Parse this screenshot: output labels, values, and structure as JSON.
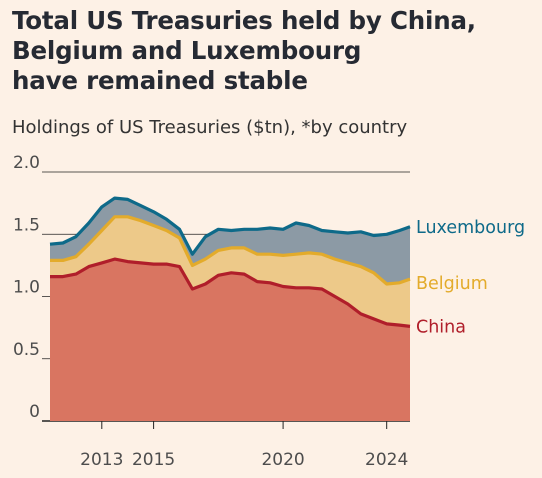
{
  "title_lines": [
    "Total US Treasuries held by China,",
    "Belgium and Luxembourg",
    "have remained stable"
  ],
  "subtitle": "Holdings of US Treasuries ($tn), *by country",
  "colors": {
    "background": "#fdf1e6",
    "china_fill": "#d97561",
    "china_line": "#b01e2a",
    "belgium_fill": "#edc989",
    "belgium_line": "#e3ab2b",
    "luxembourg_fill": "#8c9aa5",
    "luxembourg_line": "#0e6a89",
    "grid": "#222222"
  },
  "chart_data": {
    "type": "area",
    "stacked": true,
    "title": "Total US Treasuries held by China, Belgium and Luxembourg have remained stable",
    "subtitle": "Holdings of US Treasuries ($tn), *by country",
    "xlabel": "",
    "ylabel": "",
    "ylim": [
      0,
      2.0
    ],
    "y_ticks": [
      0,
      0.5,
      1.0,
      1.5,
      2.0
    ],
    "y_tick_labels": [
      "0",
      "0.5",
      "1.0",
      "1.5",
      "2.0"
    ],
    "x_ticks": [
      2013,
      2015,
      2020,
      2024
    ],
    "x_tick_labels": [
      "2013",
      "2015",
      "2020",
      "2024"
    ],
    "grid": "horizontal",
    "x": [
      2011.0,
      2011.5,
      2012.0,
      2012.5,
      2013.0,
      2013.5,
      2014.0,
      2014.5,
      2015.0,
      2015.5,
      2016.0,
      2016.5,
      2017.0,
      2017.5,
      2018.0,
      2018.5,
      2019.0,
      2019.5,
      2020.0,
      2020.5,
      2021.0,
      2021.5,
      2022.0,
      2022.5,
      2023.0,
      2023.5,
      2024.0,
      2024.5,
      2024.9
    ],
    "series": [
      {
        "name": "China",
        "label_position": "right",
        "values": [
          1.16,
          1.16,
          1.18,
          1.24,
          1.27,
          1.3,
          1.28,
          1.27,
          1.26,
          1.26,
          1.24,
          1.06,
          1.1,
          1.17,
          1.19,
          1.18,
          1.12,
          1.11,
          1.08,
          1.07,
          1.07,
          1.06,
          1.0,
          0.94,
          0.86,
          0.82,
          0.78,
          0.77,
          0.76
        ]
      },
      {
        "name": "Belgium",
        "label_position": "right",
        "values": [
          0.13,
          0.13,
          0.14,
          0.18,
          0.26,
          0.34,
          0.36,
          0.34,
          0.31,
          0.27,
          0.23,
          0.19,
          0.2,
          0.2,
          0.2,
          0.21,
          0.22,
          0.23,
          0.25,
          0.27,
          0.28,
          0.28,
          0.3,
          0.33,
          0.38,
          0.37,
          0.32,
          0.34,
          0.38
        ]
      },
      {
        "name": "Luxembourg",
        "label_position": "right",
        "values": [
          0.13,
          0.14,
          0.16,
          0.17,
          0.19,
          0.15,
          0.14,
          0.12,
          0.11,
          0.09,
          0.07,
          0.09,
          0.18,
          0.17,
          0.14,
          0.15,
          0.2,
          0.21,
          0.21,
          0.25,
          0.22,
          0.19,
          0.22,
          0.24,
          0.28,
          0.3,
          0.4,
          0.42,
          0.42
        ]
      }
    ]
  }
}
